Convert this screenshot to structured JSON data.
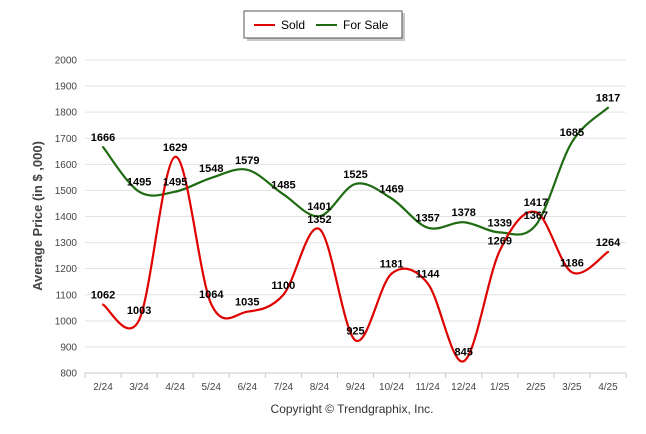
{
  "chart_data": {
    "type": "line",
    "categories": [
      "2/24",
      "3/24",
      "4/24",
      "5/24",
      "6/24",
      "7/24",
      "8/24",
      "9/24",
      "10/24",
      "11/24",
      "12/24",
      "1/25",
      "2/25",
      "3/25",
      "4/25"
    ],
    "series": [
      {
        "name": "Sold",
        "color": "#e00000",
        "values": [
          1062,
          1003,
          1629,
          1064,
          1035,
          1100,
          1352,
          925,
          1181,
          1144,
          845,
          1269,
          1417,
          1186,
          1264
        ],
        "labels": [
          "1062",
          "1003",
          "1629",
          "1064",
          "1035",
          "1100",
          "1352",
          "925",
          "1181",
          "1144",
          "845",
          "1269",
          "1417",
          "1186",
          "1264"
        ]
      },
      {
        "name": "For Sale",
        "color": "#1f6b12",
        "values": [
          1666,
          1495,
          1495,
          1548,
          1579,
          1485,
          1401,
          1525,
          1469,
          1357,
          1378,
          1339,
          1367,
          1685,
          1817
        ],
        "labels": [
          "1666",
          "1495",
          "1495",
          "1548",
          "1579",
          "1485",
          "1401",
          "1525",
          "1469",
          "1357",
          "1378",
          "1339",
          "1367",
          "1685",
          "1817"
        ]
      }
    ],
    "ylabel": "Average Price (in $ ,000)",
    "xlabel": "",
    "ylim": [
      800,
      2000
    ],
    "yticks": [
      "800",
      "900",
      "1000",
      "1100",
      "1200",
      "1300",
      "1400",
      "1500",
      "1600",
      "1700",
      "1800",
      "1900",
      "2000"
    ],
    "grid": true,
    "legend_position": "top-center"
  },
  "footer": {
    "copyright": "Copyright © Trendgraphix, Inc."
  }
}
